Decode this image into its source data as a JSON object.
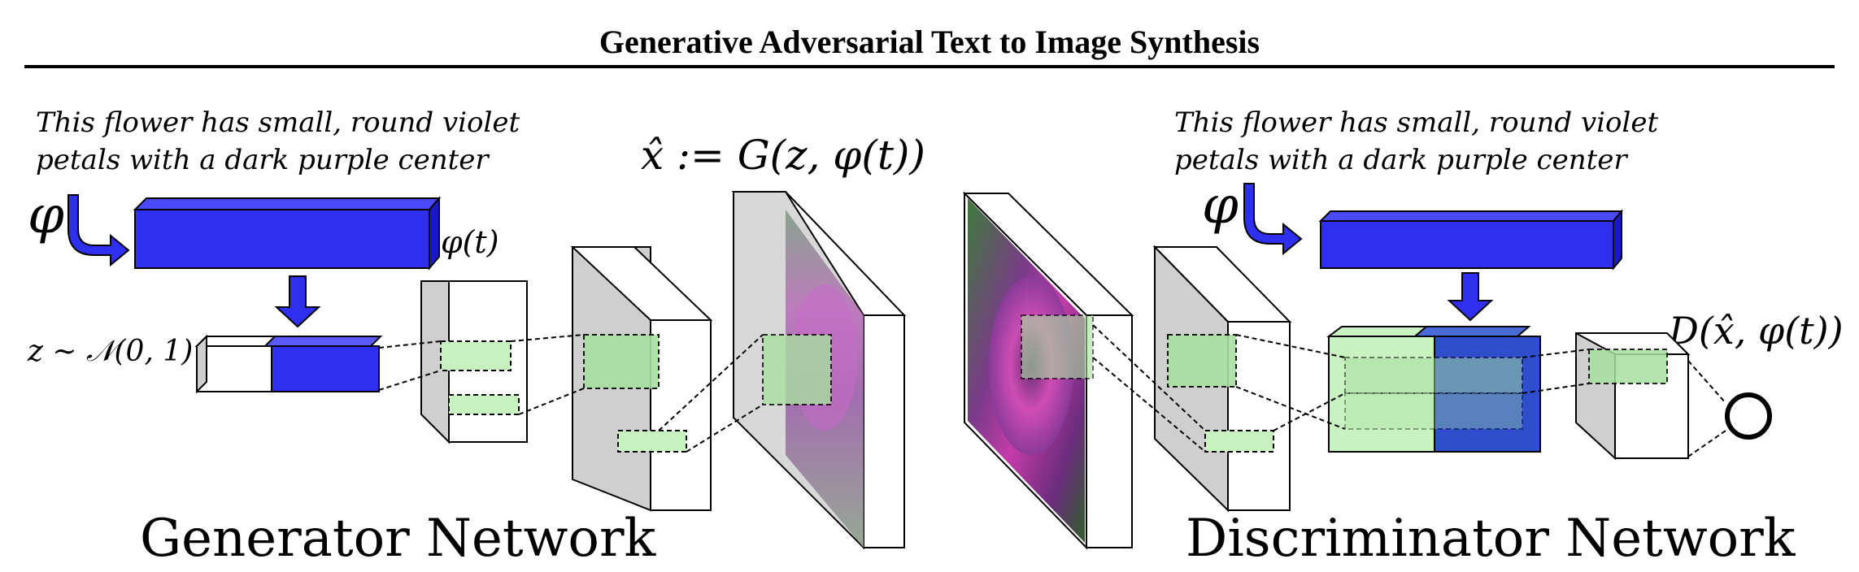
{
  "header": {
    "title": "Generative Adversarial Text to Image Synthesis"
  },
  "generator": {
    "caption_line1": "This flower has small, round violet",
    "caption_line2": "petals with a dark purple center",
    "phi_symbol": "φ",
    "embedding_label": "φ(t)",
    "noise_label": "z ∼ 𝒩(0, 1)",
    "output_label": "x̂ := G(z, φ(t))",
    "network_label": "Generator Network"
  },
  "discriminator": {
    "caption_line1": "This flower has small, round violet",
    "caption_line2": "petals with a dark purple center",
    "phi_symbol": "φ",
    "output_label": "D(x̂, φ(t))",
    "network_label": "Discriminator Network"
  },
  "colors": {
    "embedding_blue": "#2f2ff0",
    "conv_blue": "#2f4ecb",
    "feature_green": "#c8f2c0",
    "panel_grey": "#cfcfcf"
  }
}
